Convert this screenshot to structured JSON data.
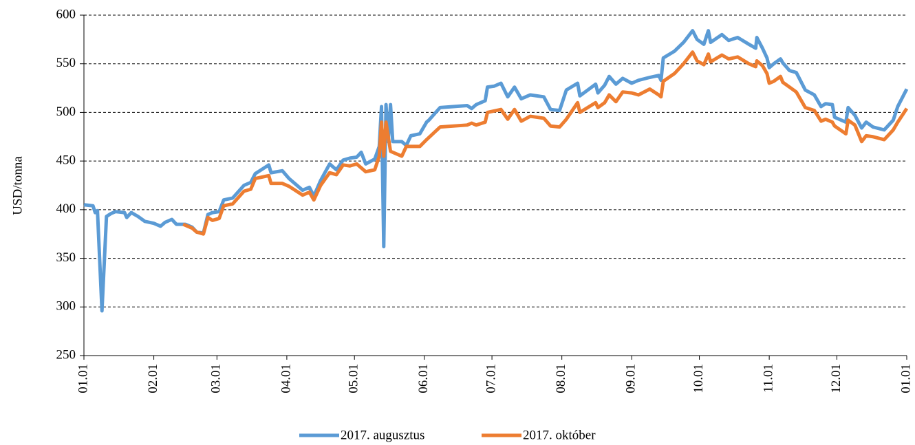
{
  "chart_data": {
    "type": "line",
    "y_label": "USD/tonna",
    "xlim": [
      0,
      365
    ],
    "xticks": [
      {
        "value": 0,
        "label": "01.01"
      },
      {
        "value": 31,
        "label": "02.01"
      },
      {
        "value": 59,
        "label": "03.01"
      },
      {
        "value": 90,
        "label": "04.01"
      },
      {
        "value": 120,
        "label": "05.01"
      },
      {
        "value": 151,
        "label": "06.01"
      },
      {
        "value": 181,
        "label": "07.01"
      },
      {
        "value": 212,
        "label": "08.01"
      },
      {
        "value": 243,
        "label": "09.01"
      },
      {
        "value": 273,
        "label": "10.01"
      },
      {
        "value": 304,
        "label": "11.01"
      },
      {
        "value": 334,
        "label": "12.01"
      },
      {
        "value": 365,
        "label": "01.01"
      }
    ],
    "ylim": [
      250,
      600
    ],
    "yticks": [
      250,
      300,
      350,
      400,
      450,
      500,
      550,
      600
    ],
    "grid": true,
    "legend": "bottom",
    "series": [
      {
        "name": "2017. augusztus",
        "color": "#5b9bd5",
        "x": [
          0,
          4,
          5,
          6,
          8,
          10,
          12,
          14,
          18,
          19,
          21,
          24,
          27,
          31,
          34,
          36,
          39,
          41,
          45,
          48,
          50,
          53,
          55,
          57,
          60,
          62,
          66,
          71,
          74,
          76,
          82,
          83,
          88,
          91,
          97,
          100,
          102,
          105,
          109,
          112,
          115,
          118,
          121,
          123,
          125,
          129,
          131,
          132,
          133,
          134,
          135,
          136,
          137,
          141,
          143,
          145,
          149,
          152,
          153,
          158,
          170,
          172,
          174,
          178,
          179,
          182,
          185,
          188,
          191,
          194,
          198,
          204,
          207,
          211,
          214,
          219,
          220,
          227,
          228,
          231,
          233,
          236,
          239,
          243,
          246,
          251,
          255,
          256,
          257,
          262,
          266,
          270,
          272,
          275,
          277,
          278,
          283,
          286,
          290,
          295,
          298,
          298.5,
          301,
          303,
          304,
          306,
          309,
          310,
          313,
          316,
          320,
          324,
          327,
          329,
          332,
          333,
          338,
          339,
          342,
          345,
          347,
          350,
          355,
          359,
          361,
          365
        ],
        "values": [
          405,
          404,
          397,
          399,
          296,
          393,
          396,
          398,
          397,
          392,
          397,
          393,
          388,
          386,
          383,
          387,
          390,
          385,
          385,
          382,
          377,
          376,
          395,
          397,
          398,
          410,
          412,
          425,
          428,
          437,
          446,
          438,
          440,
          432,
          420,
          423,
          414,
          430,
          447,
          441,
          451,
          453,
          454,
          459,
          447,
          452,
          465,
          506,
          362,
          508,
          470,
          508,
          470,
          470,
          466,
          476,
          478,
          490,
          492,
          505,
          507,
          504,
          508,
          512,
          526,
          527,
          530,
          516,
          526,
          514,
          518,
          516,
          503,
          502,
          523,
          530,
          517,
          529,
          520,
          528,
          537,
          529,
          535,
          530,
          533,
          536,
          538,
          533,
          556,
          563,
          572,
          584,
          575,
          570,
          584,
          572,
          580,
          574,
          577,
          570,
          566,
          577,
          566,
          556,
          546,
          550,
          555,
          551,
          543,
          541,
          523,
          518,
          506,
          509,
          508,
          495,
          490,
          505,
          497,
          484,
          490,
          485,
          482,
          492,
          506,
          524
        ]
      },
      {
        "name": "2017. október",
        "color": "#ed7d31",
        "x": [
          44,
          48,
          50,
          53,
          55,
          57,
          60,
          62,
          66,
          71,
          74,
          76,
          82,
          83,
          88,
          91,
          97,
          100,
          102,
          105,
          109,
          112,
          115,
          118,
          121,
          125,
          129,
          131,
          132,
          133,
          134,
          136,
          141,
          143,
          149,
          152,
          158,
          170,
          172,
          174,
          178,
          179,
          185,
          188,
          191,
          194,
          198,
          204,
          207,
          211,
          214,
          219,
          220,
          227,
          228,
          231,
          233,
          236,
          239,
          243,
          246,
          251,
          255,
          256,
          257,
          262,
          266,
          270,
          272,
          275,
          277,
          278,
          283,
          286,
          290,
          295,
          298,
          298.5,
          301,
          303,
          304,
          306,
          309,
          310,
          313,
          316,
          320,
          324,
          327,
          329,
          332,
          333,
          338,
          339,
          342,
          345,
          347,
          350,
          355,
          359,
          361,
          365
        ],
        "values": [
          385,
          381,
          377,
          375,
          392,
          389,
          391,
          404,
          406,
          419,
          421,
          432,
          435,
          427,
          427,
          424,
          415,
          418,
          410,
          425,
          438,
          436,
          446,
          445,
          447,
          439,
          441,
          455,
          490,
          455,
          490,
          460,
          455,
          465,
          465,
          472,
          485,
          487,
          489,
          487,
          490,
          500,
          503,
          493,
          503,
          491,
          496,
          494,
          486,
          485,
          493,
          510,
          500,
          510,
          505,
          510,
          518,
          511,
          521,
          520,
          518,
          524,
          518,
          516,
          532,
          540,
          550,
          562,
          553,
          549,
          560,
          552,
          559,
          555,
          557,
          550,
          547,
          553,
          548,
          540,
          530,
          532,
          537,
          531,
          526,
          521,
          505,
          502,
          491,
          493,
          490,
          486,
          478,
          492,
          487,
          470,
          476,
          475,
          472,
          482,
          490,
          504
        ]
      }
    ]
  }
}
